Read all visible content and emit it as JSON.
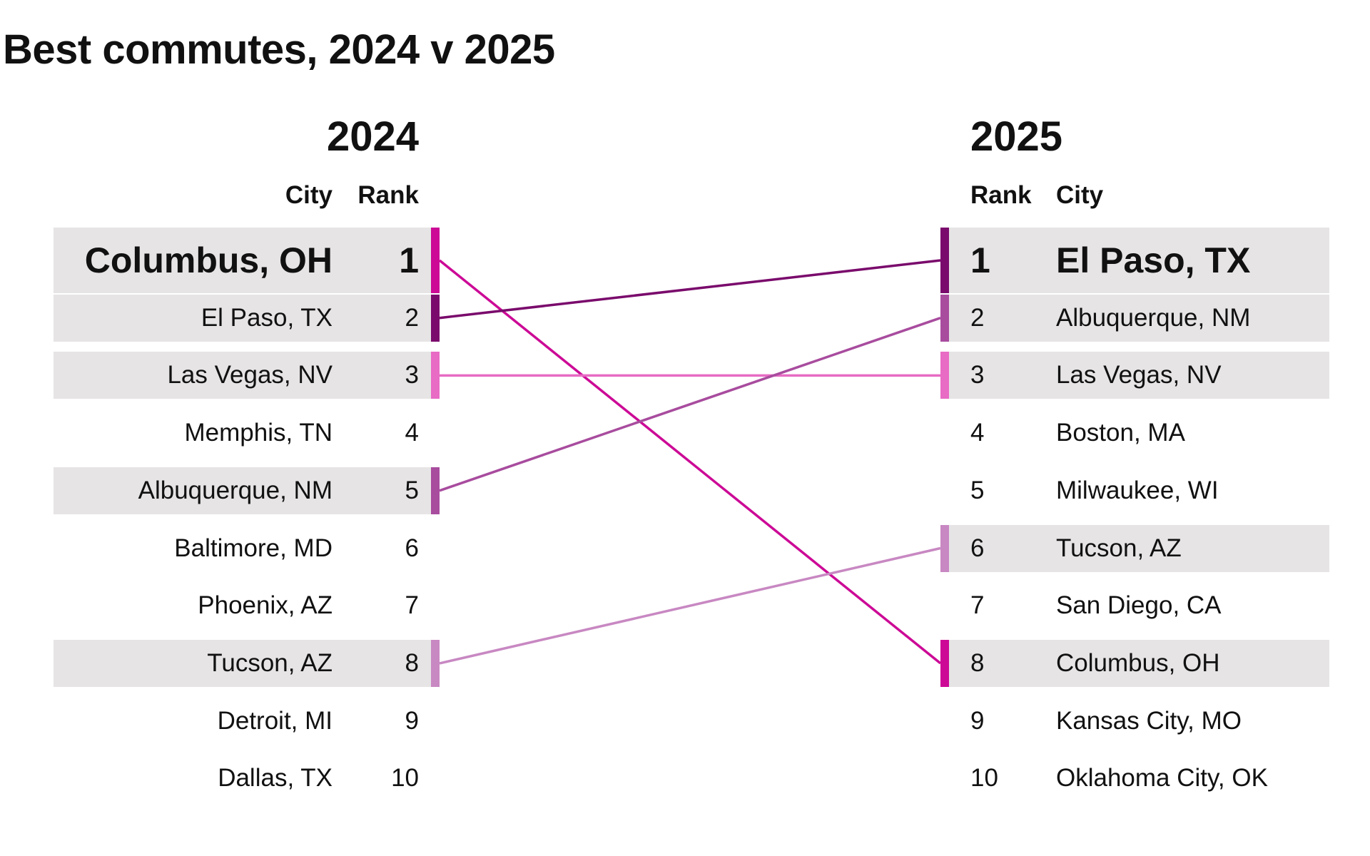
{
  "title": "Best commutes, 2024 v 2025",
  "chart_data": {
    "type": "table",
    "left": {
      "year": "2024",
      "city_header": "City",
      "rank_header": "Rank",
      "rows": [
        {
          "rank": 1,
          "rank_label": "1",
          "city": "Columbus, OH"
        },
        {
          "rank": 2,
          "rank_label": "2",
          "city": "El Paso, TX"
        },
        {
          "rank": 3,
          "rank_label": "3",
          "city": "Las Vegas, NV"
        },
        {
          "rank": 4,
          "rank_label": "4",
          "city": "Memphis, TN"
        },
        {
          "rank": 5,
          "rank_label": "5",
          "city": "Albuquerque, NM"
        },
        {
          "rank": 6,
          "rank_label": "6",
          "city": "Baltimore, MD"
        },
        {
          "rank": 7,
          "rank_label": "7",
          "city": "Phoenix, AZ"
        },
        {
          "rank": 8,
          "rank_label": "8",
          "city": "Tucson, AZ"
        },
        {
          "rank": 9,
          "rank_label": "9",
          "city": "Detroit, MI"
        },
        {
          "rank": 10,
          "rank_label": "10",
          "city": "Dallas, TX"
        }
      ]
    },
    "right": {
      "year": "2025",
      "rank_header": "Rank",
      "city_header": "City",
      "rows": [
        {
          "rank": 1,
          "rank_label": "1",
          "city": "El Paso, TX"
        },
        {
          "rank": 2,
          "rank_label": "2",
          "city": "Albuquerque, NM"
        },
        {
          "rank": 3,
          "rank_label": "3",
          "city": "Las Vegas, NV"
        },
        {
          "rank": 4,
          "rank_label": "4",
          "city": "Boston, MA"
        },
        {
          "rank": 5,
          "rank_label": "5",
          "city": "Milwaukee, WI"
        },
        {
          "rank": 6,
          "rank_label": "6",
          "city": "Tucson, AZ"
        },
        {
          "rank": 7,
          "rank_label": "7",
          "city": "San Diego, CA"
        },
        {
          "rank": 8,
          "rank_label": "8",
          "city": "Columbus, OH"
        },
        {
          "rank": 9,
          "rank_label": "9",
          "city": "Kansas City, MO"
        },
        {
          "rank": 10,
          "rank_label": "10",
          "city": "Oklahoma City, OK"
        }
      ]
    },
    "connections": [
      {
        "city": "Columbus, OH",
        "rank_2024": 1,
        "rank_2025": 8,
        "color": "#cc0a96"
      },
      {
        "city": "El Paso, TX",
        "rank_2024": 2,
        "rank_2025": 1,
        "color": "#7a0b6c"
      },
      {
        "city": "Las Vegas, NV",
        "rank_2024": 3,
        "rank_2025": 3,
        "color": "#e86bc4"
      },
      {
        "city": "Albuquerque, NM",
        "rank_2024": 5,
        "rank_2025": 2,
        "color": "#a84c9e"
      },
      {
        "city": "Tucson, AZ",
        "rank_2024": 8,
        "rank_2025": 6,
        "color": "#c888c2"
      }
    ],
    "row_highlight_color": "#e6e4e5",
    "emphasized_rank": 1
  }
}
